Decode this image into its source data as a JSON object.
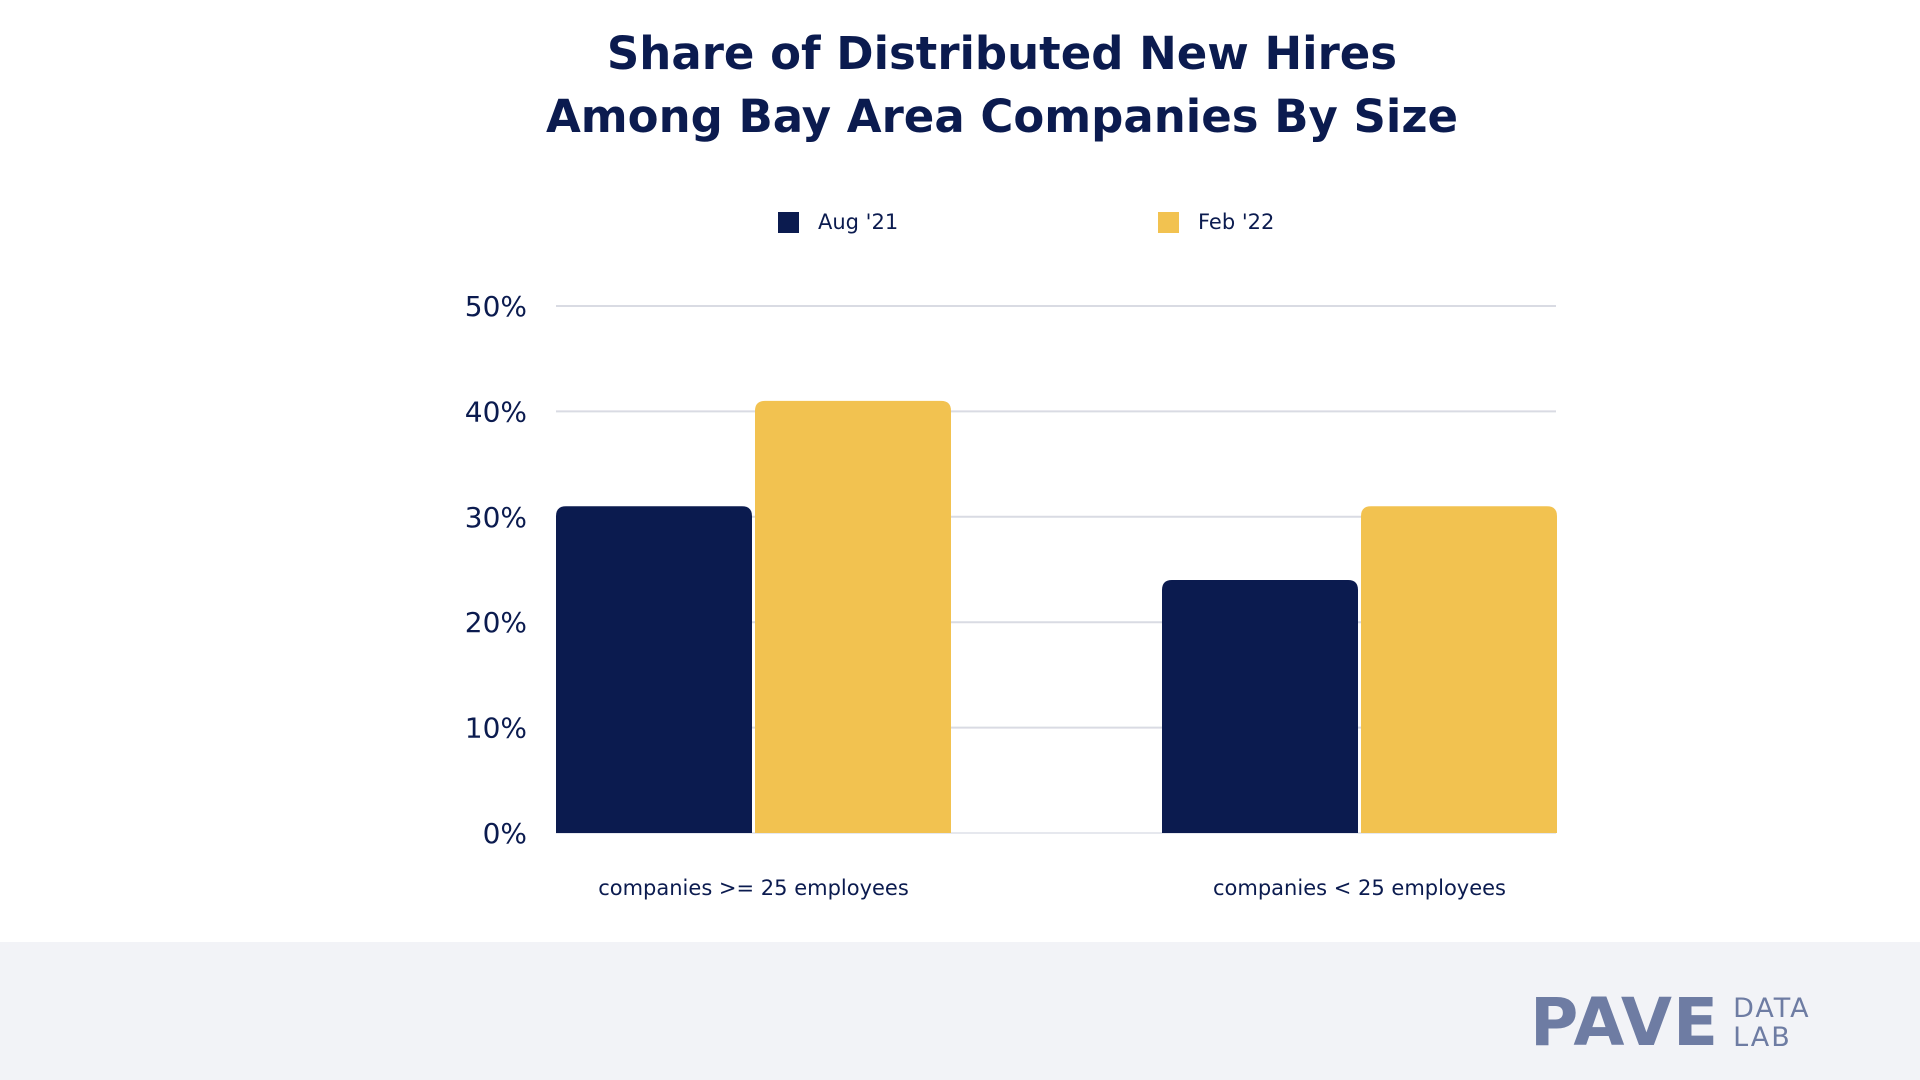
{
  "chart_data": {
    "type": "bar",
    "title_lines": [
      "Share of Distributed New Hires",
      "Among Bay Area Companies By Size"
    ],
    "categories": [
      "companies >= 25 employees",
      "companies < 25 employees"
    ],
    "series": [
      {
        "name": "Aug '21",
        "color": "#0b1b4f",
        "values": [
          31,
          24
        ]
      },
      {
        "name": "Feb '22",
        "color": "#f2c250",
        "values": [
          41,
          31
        ]
      }
    ],
    "ylim": [
      0,
      50
    ],
    "yticks": [
      "0%",
      "10%",
      "20%",
      "30%",
      "40%",
      "50%"
    ],
    "y_tick_values": [
      0,
      10,
      20,
      30,
      40,
      50
    ],
    "grid": true,
    "legend_position": "top"
  },
  "brand": {
    "logo": "PAVE",
    "sub_line1": "DATA",
    "sub_line2": "LAB"
  }
}
